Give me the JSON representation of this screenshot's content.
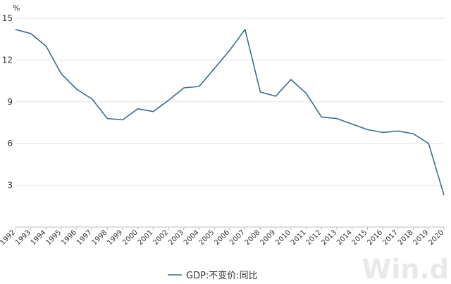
{
  "chart_data": {
    "type": "line",
    "unit_label": "%",
    "x": [
      "1992",
      "1993",
      "1994",
      "1995",
      "1996",
      "1997",
      "1998",
      "1999",
      "2000",
      "2001",
      "2002",
      "2003",
      "2004",
      "2005",
      "2006",
      "2007",
      "2008",
      "2009",
      "2010",
      "2011",
      "2012",
      "2013",
      "2014",
      "2015",
      "2016",
      "2017",
      "2018",
      "2019",
      "2020"
    ],
    "series": [
      {
        "name": "GDP:不变价:同比",
        "color": "#3b6e86",
        "values": [
          14.2,
          13.9,
          13.0,
          11.0,
          9.9,
          9.2,
          7.8,
          7.7,
          8.5,
          8.3,
          9.1,
          10.0,
          10.1,
          11.4,
          12.7,
          14.2,
          9.7,
          9.4,
          10.6,
          9.6,
          7.9,
          7.8,
          7.4,
          7.0,
          6.8,
          6.9,
          6.7,
          6.0,
          2.3
        ]
      }
    ],
    "yticks": [
      3,
      6,
      9,
      12,
      15
    ],
    "ylim": [
      0,
      15
    ],
    "grid": true,
    "legend_position": "bottom-center",
    "watermark": "Win.d"
  }
}
